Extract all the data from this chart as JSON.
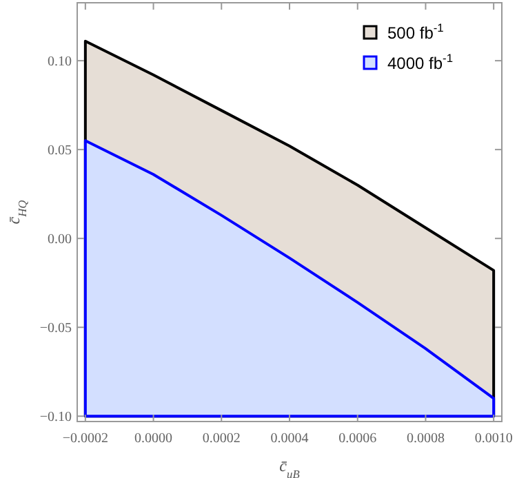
{
  "chart_data": {
    "type": "area",
    "xlabel": "c̄$_{uB}$",
    "ylabel": "c̄$_{HQ}$",
    "x": [
      -0.0002,
      -0.0002,
      0.0,
      0.0002,
      0.0004,
      0.0006,
      0.0008,
      0.001,
      0.001
    ],
    "series": [
      {
        "name": "500 fb$^{-1}$",
        "color": "#000000",
        "values": [
          -0.1,
          0.111,
          0.092,
          0.072,
          0.052,
          0.03,
          0.006,
          -0.018,
          -0.1
        ]
      },
      {
        "name": "4000 fb$^{-1}$",
        "color": "#0000ff",
        "values": [
          -0.1,
          0.055,
          0.036,
          0.013,
          -0.011,
          -0.036,
          -0.062,
          -0.09,
          -0.1
        ]
      }
    ],
    "xlim": [
      -0.000224,
      0.001024
    ],
    "xticks": [
      {
        "value": -0.0002,
        "label": "−0.0002"
      },
      {
        "value": 0,
        "label": "0.0000"
      },
      {
        "value": 0.0002,
        "label": "0.0002"
      },
      {
        "value": 0.0004,
        "label": "0.0004"
      },
      {
        "value": 0.0006,
        "label": "0.0006"
      },
      {
        "value": 0.0008,
        "label": "0.0008"
      },
      {
        "value": 0.001,
        "label": "0.0010"
      }
    ],
    "ylim": [
      -0.103,
      0.1326
    ],
    "yticks": [
      {
        "value": -0.1,
        "label": "−0.10"
      },
      {
        "value": -0.05,
        "label": "−0.05"
      },
      {
        "value": 0,
        "label": "0.00"
      },
      {
        "value": 0.05,
        "label": "0.05"
      },
      {
        "value": 0.1,
        "label": "0.10"
      }
    ],
    "legend": "top right",
    "grid": false
  }
}
